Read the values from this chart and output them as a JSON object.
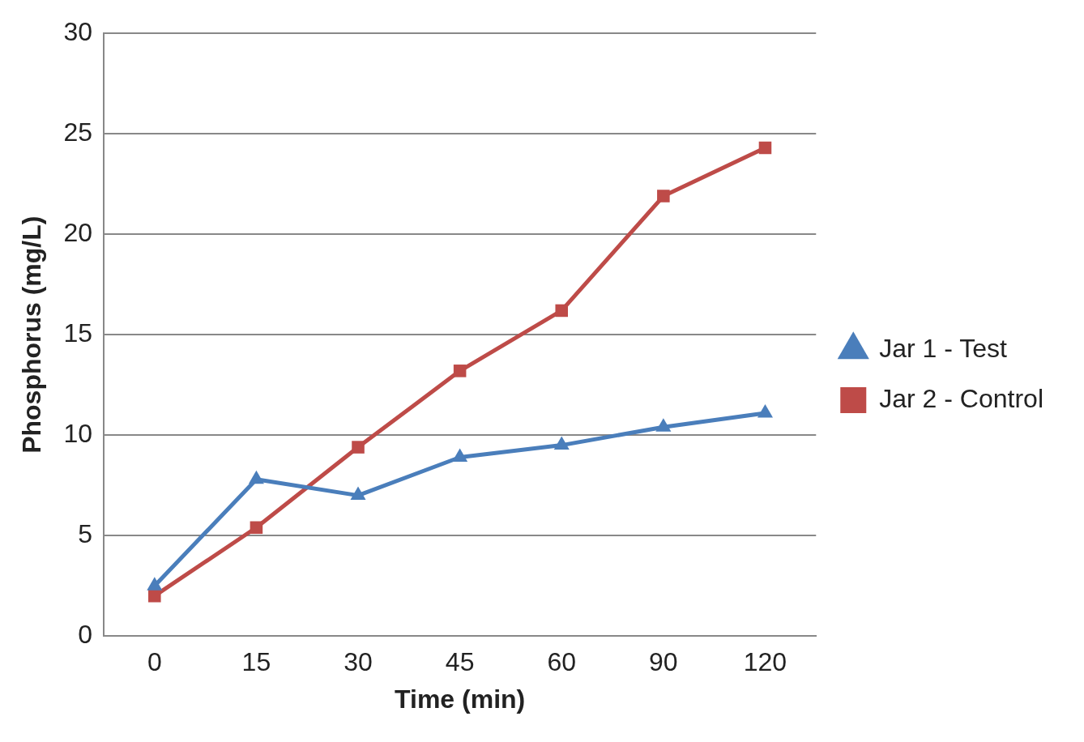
{
  "chart_data": {
    "type": "line",
    "xlabel": "Time (min)",
    "ylabel": "Phosphorus (mg/L)",
    "categories": [
      "0",
      "15",
      "30",
      "45",
      "60",
      "90",
      "120"
    ],
    "series": [
      {
        "name": "Jar 1 - Test",
        "color": "#4a7ebb",
        "marker": "triangle",
        "values": [
          2.5,
          7.8,
          7.0,
          8.9,
          9.5,
          10.4,
          11.1
        ]
      },
      {
        "name": "Jar 2 - Control",
        "color": "#be4b48",
        "marker": "square",
        "values": [
          2.0,
          5.4,
          9.4,
          13.2,
          16.2,
          21.9,
          24.3
        ]
      }
    ],
    "ylim": [
      0,
      30
    ],
    "yticks": [
      0,
      5,
      10,
      15,
      20,
      25,
      30
    ],
    "grid": "y",
    "legend": "right"
  }
}
